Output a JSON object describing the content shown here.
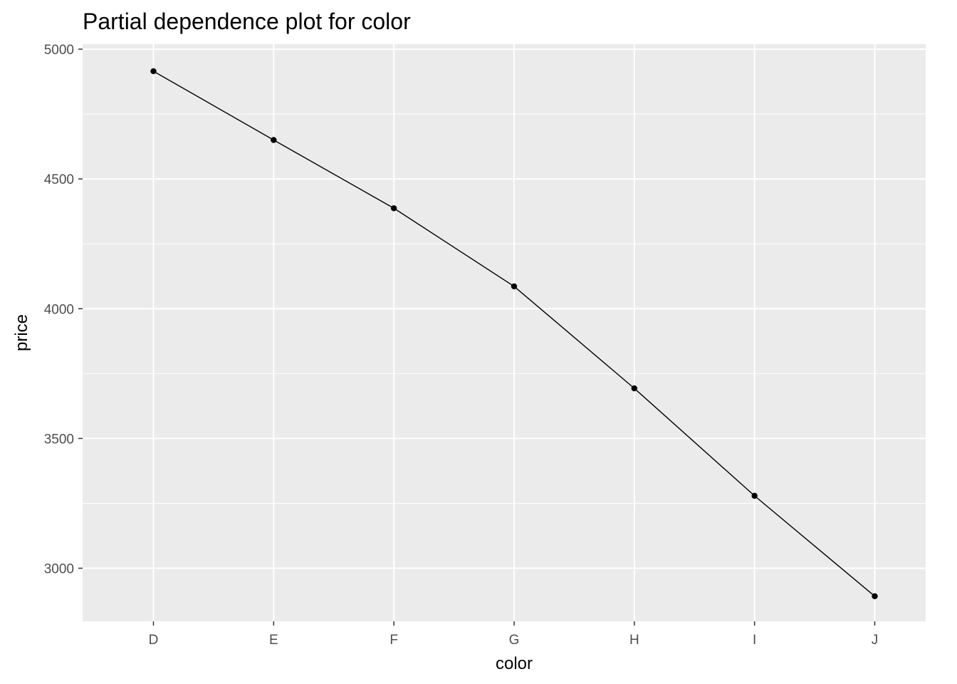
{
  "chart_data": {
    "type": "line",
    "title": "Partial dependence plot for color",
    "xlabel": "color",
    "ylabel": "price",
    "categories": [
      "D",
      "E",
      "F",
      "G",
      "H",
      "I",
      "J"
    ],
    "series": [
      {
        "values": [
          4915,
          4650,
          4387,
          4086,
          3693,
          3279,
          2892
        ]
      }
    ],
    "ylim": [
      2800,
      5000
    ],
    "yticks": [
      3000,
      3500,
      4000,
      4500,
      5000
    ],
    "ytick_labels": [
      "3000",
      "3500",
      "4000",
      "4500",
      "5000"
    ],
    "grid": true,
    "markers": true,
    "colors": {
      "panel_background": "#ebebeb",
      "gridline": "#ffffff",
      "line": "#000000",
      "point": "#000000",
      "tick_text": "#4d4d4d",
      "tick_mark": "#333333"
    }
  }
}
